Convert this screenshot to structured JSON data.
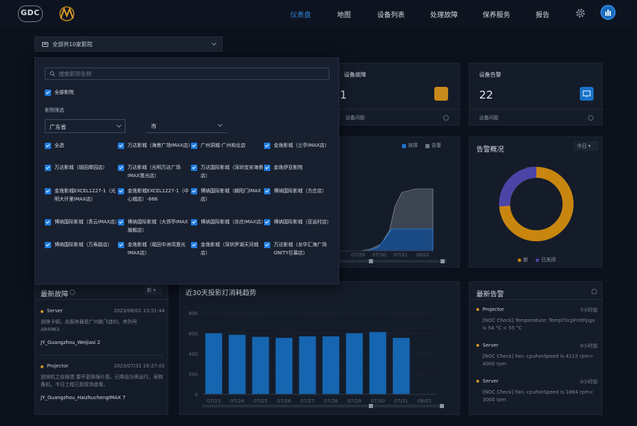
{
  "nav": {
    "logo1": "GDC",
    "items": [
      "仪表盘",
      "地图",
      "设备列表",
      "处理故障",
      "保养服务",
      "报告"
    ],
    "active_index": 0,
    "accent": "#2e86de"
  },
  "cinema_select": {
    "label": "全部共10家影院"
  },
  "dropdown": {
    "search_placeholder": "搜索影院名称",
    "all_label": "全部影院",
    "section_label": "影院筛选",
    "province": "广东省",
    "city": "市",
    "items": [
      "全选",
      "万达影城（海景广场IMAX店）",
      "广州洞城·广州和业店",
      "金逸影城（兰亭IMAX店）",
      "万达影城（钢田摩园店）",
      "万达影城（光明万达广场IMAX激光店）",
      "万达国际影城（深圳宝安海景店）",
      "金逸伊亚影院",
      "金逸影城EXCEL1227-1（光明大仟里IMAX店）",
      "金逸影城EXCEL1227-1（中心城店）-666",
      "博纳国际影城（朝阳门IMAX店）",
      "博纳国际影城（方庄店）",
      "博纳国际影城（青云IMAX店）",
      "博纳国际影城（大郊亭IMAX旗舰店）",
      "博纳国际影城（亦庄IMAX店）",
      "博纳国际影城（亚运村店）",
      "博纳国际影城（万寿路店）",
      "金逸影城（福田中洲湾激光IMAX店）",
      "金逸影城（深圳罗湖天河城店）",
      "万达影城（龙华汇海广场ONITY巨幕店）"
    ]
  },
  "cards": {
    "fault": {
      "title": "设备故障",
      "value": "1",
      "label": "设备问题"
    },
    "alarm": {
      "title": "设备告警",
      "value": "22",
      "label": "设备问题"
    }
  },
  "trend_chart": {
    "legend": [
      "故障",
      "告警"
    ],
    "x_labels": [
      "07/29",
      "07/30",
      "07/31",
      "08/01"
    ]
  },
  "alarm_overview": {
    "title": "告警概况",
    "period": "今日",
    "legend": [
      "新",
      "已关闭"
    ],
    "colors": {
      "new": "#c8860f",
      "closed": "#4b45a8"
    }
  },
  "latest_faults": {
    "title": "最新故障",
    "filter": "新",
    "items": [
      {
        "device": "Server",
        "time": "2023/08/01 13:51:44",
        "desc": "放映卡顿。此服务器是广州鹏飞连的。序列号A84963",
        "site": "JY_Guangzhou_Weijiasi 2"
      },
      {
        "device": "Projector",
        "time": "2023/07/31 16:27:02",
        "desc": "放映机之前报错 要坏更换镜片感。已降低功率运行。采购备机。今日工程已到现场查看。",
        "site": "JY_Guangzhou_HaizhuchengIMAX 7"
      }
    ]
  },
  "lamp_chart": {
    "title": "近30天投影灯消耗趋势"
  },
  "chart_data": {
    "type": "bar",
    "categories": [
      "07/23",
      "07/24",
      "07/25",
      "07/26",
      "07/27",
      "07/28",
      "07/29",
      "07/30",
      "07/31",
      "08/01"
    ],
    "values": [
      600,
      585,
      565,
      555,
      570,
      570,
      600,
      612,
      555,
      0
    ],
    "ylim": [
      0,
      800
    ],
    "yticks": [
      0,
      200,
      400,
      600,
      800
    ],
    "color": "#1565b0"
  },
  "latest_alarms": {
    "title": "最新告警",
    "items": [
      {
        "device": "Projector",
        "ago": "7小时前",
        "msg": "[NOC Check] Temperature: TempTXcpFmtFpga is 54 °C < 55 °C"
      },
      {
        "device": "Server",
        "ago": "0小时前",
        "msg": "[NOC Check] Fan: cpuFanSpeed is 4115 rpm> 4000 rpm"
      },
      {
        "device": "Server",
        "ago": "0小时前",
        "msg": "[NOC Check] Fan: cpuFanSpeed is 1864 rpm< 3000 rpm"
      }
    ]
  }
}
